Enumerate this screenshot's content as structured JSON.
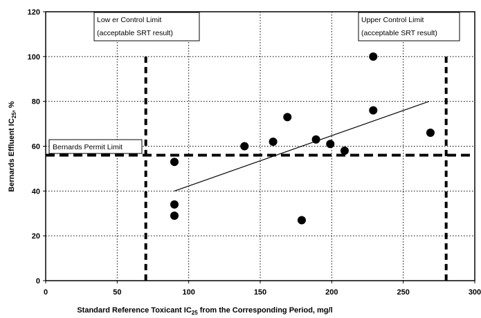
{
  "chart_data": {
    "type": "scatter",
    "title": "",
    "xlabel": "Standard Reference Toxicant IC",
    "xlabel_sub": "25",
    "xlabel_suffix": " from the Corresponding Period, mg/l",
    "ylabel": "Bernards Effluent IC",
    "ylabel_sub": "25",
    "ylabel_suffix": ", %",
    "xlim": [
      0,
      300
    ],
    "ylim": [
      0,
      120
    ],
    "xticks": [
      0,
      50,
      100,
      150,
      200,
      250,
      300
    ],
    "yticks": [
      0,
      20,
      40,
      60,
      80,
      100,
      120
    ],
    "grid": true,
    "points": [
      {
        "x": 90,
        "y": 53
      },
      {
        "x": 90,
        "y": 34
      },
      {
        "x": 90,
        "y": 29
      },
      {
        "x": 139,
        "y": 60
      },
      {
        "x": 159,
        "y": 62
      },
      {
        "x": 169,
        "y": 73
      },
      {
        "x": 179,
        "y": 27
      },
      {
        "x": 189,
        "y": 63
      },
      {
        "x": 199,
        "y": 61
      },
      {
        "x": 209,
        "y": 58
      },
      {
        "x": 229,
        "y": 100
      },
      {
        "x": 229,
        "y": 76
      },
      {
        "x": 269,
        "y": 66
      }
    ],
    "trendline": {
      "x": [
        90,
        268
      ],
      "y": [
        40,
        80
      ]
    },
    "lower_control_limit": 70,
    "upper_control_limit": 280,
    "permit_limit": 56,
    "annotations": {
      "lower_control_limit": [
        "Low er Control Limit",
        "(acceptable SRT result)"
      ],
      "upper_control_limit": [
        "Upper Control Limit",
        "(acceptable SRT result)"
      ],
      "permit_limit": "Bernards Permit Limit"
    }
  }
}
